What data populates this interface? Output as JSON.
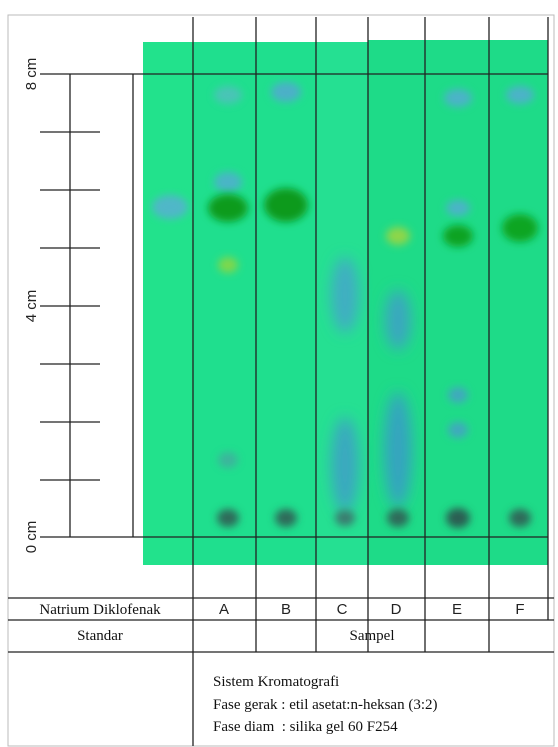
{
  "axis_labels": [
    "8 cm",
    "4 cm",
    "0 cm"
  ],
  "table": {
    "lanes": [
      "Natrium Diklofenak",
      "A",
      "B",
      "C",
      "D",
      "E",
      "F"
    ],
    "groups": [
      "Standar",
      "Sampel"
    ],
    "info": [
      "Sistem Kromatografi",
      "Fase gerak : etil asetat:n-heksan (3:2)",
      "Fase diam  : silika gel 60 F254"
    ]
  }
}
